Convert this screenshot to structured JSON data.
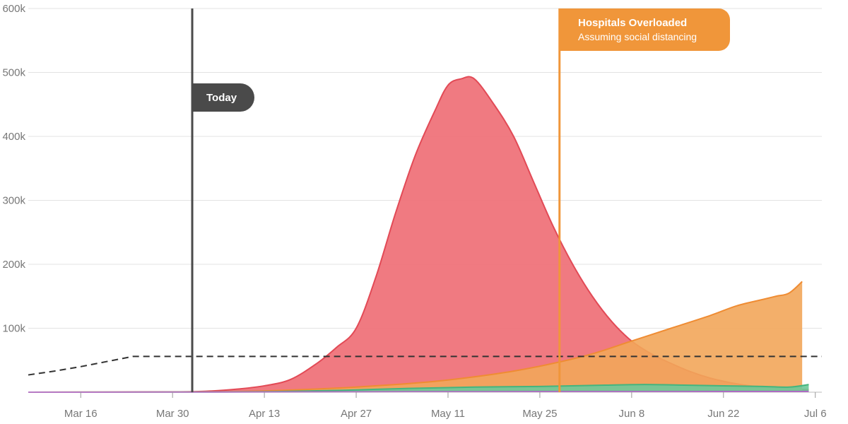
{
  "chart_data": {
    "type": "area",
    "ylim": [
      0,
      600000
    ],
    "y_ticks": [
      {
        "value": 0,
        "label": ""
      },
      {
        "value": 100000,
        "label": "100k"
      },
      {
        "value": 200000,
        "label": "200k"
      },
      {
        "value": 300000,
        "label": "300k"
      },
      {
        "value": 400000,
        "label": "400k"
      },
      {
        "value": 500000,
        "label": "500k"
      },
      {
        "value": 600000,
        "label": "600k"
      }
    ],
    "x_ticks": [
      {
        "value": 10,
        "label": "Mar 16"
      },
      {
        "value": 24,
        "label": "Mar 30"
      },
      {
        "value": 38,
        "label": "Apr 13"
      },
      {
        "value": 52,
        "label": "Apr 27"
      },
      {
        "value": 66,
        "label": "May 11"
      },
      {
        "value": 80,
        "label": "May 25"
      },
      {
        "value": 94,
        "label": "Jun 8"
      },
      {
        "value": 108,
        "label": "Jun 22"
      },
      {
        "value": 122,
        "label": "Jul 6"
      }
    ],
    "xlim": [
      2,
      123
    ],
    "grid": true,
    "series": [
      {
        "color": "#ee6b73",
        "stroke": "#e24a56",
        "x": [
          2,
          24,
          30,
          34,
          38,
          42,
          46,
          49,
          52,
          55,
          58,
          61,
          64,
          66,
          68,
          70,
          73,
          76,
          79,
          82,
          85,
          88,
          91,
          94,
          97,
          100,
          103,
          106,
          109,
          112,
          115,
          118,
          121
        ],
        "values": [
          0,
          500,
          2000,
          5000,
          10000,
          20000,
          45000,
          70000,
          100000,
          180000,
          280000,
          370000,
          440000,
          480000,
          490000,
          490000,
          450000,
          400000,
          330000,
          260000,
          200000,
          150000,
          110000,
          80000,
          60000,
          45000,
          32000,
          22000,
          15000,
          10000,
          7000,
          5000,
          4000
        ]
      },
      {
        "color": "#f2a65a",
        "stroke": "#ef8c33",
        "x": [
          2,
          30,
          38,
          46,
          52,
          58,
          64,
          70,
          76,
          82,
          88,
          94,
          100,
          106,
          110,
          114,
          116,
          118,
          120
        ],
        "values": [
          0,
          500,
          2000,
          5000,
          8000,
          12000,
          17000,
          24000,
          33000,
          45000,
          60000,
          80000,
          100000,
          120000,
          135000,
          145000,
          150000,
          155000,
          173000
        ]
      },
      {
        "color": "#6cc99a",
        "stroke": "#44b57e",
        "x": [
          2,
          30,
          40,
          50,
          60,
          70,
          80,
          90,
          96,
          102,
          108,
          114,
          118,
          121
        ],
        "values": [
          0,
          300,
          1000,
          3000,
          6000,
          8000,
          9000,
          11000,
          12000,
          11000,
          10000,
          9000,
          8000,
          12000
        ]
      },
      {
        "color": "#c04bd9",
        "stroke": "#b33bcf",
        "x": [
          2,
          30,
          60,
          90,
          121
        ],
        "values": [
          0,
          200,
          500,
          700,
          800
        ]
      }
    ],
    "capacity_line": {
      "x": [
        2,
        6,
        10,
        14,
        18,
        123
      ],
      "values": [
        27000,
        33000,
        40000,
        48000,
        56000,
        56000
      ]
    },
    "markers": [
      {
        "x": 27,
        "label": "Today",
        "color": "#4a4a4a"
      },
      {
        "x": 83,
        "label": "Hospitals Overloaded",
        "sublabel": "Assuming social distancing",
        "color": "#f0963a"
      }
    ]
  }
}
